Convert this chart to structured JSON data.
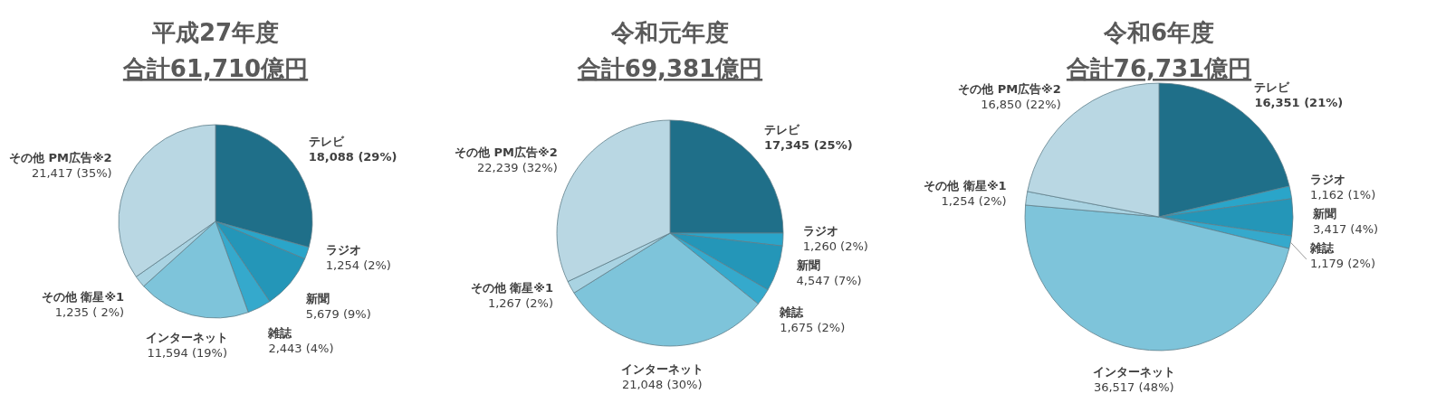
{
  "chart_data": [
    {
      "type": "pie",
      "title": "平成27年度",
      "subtitle": "合計61,710億円",
      "categories": [
        "テレビ",
        "ラジオ",
        "新聞",
        "雑誌",
        "インターネット",
        "その他 衛星※1",
        "その他 PM広告※2"
      ],
      "values": [
        18088,
        1254,
        5679,
        2443,
        11594,
        1235,
        21417
      ],
      "value_labels": [
        "18,088 (29%)",
        "1,254 (2%)",
        "5,679 (9%)",
        "2,443 (4%)",
        "11,594 (19%)",
        "1,235 ( 2%)",
        "21,417 (35%)"
      ],
      "colors": [
        "#1f6f89",
        "#2aa5c9",
        "#2496b8",
        "#35a9cc",
        "#7ec4da",
        "#a9d3e2",
        "#b9d7e3"
      ]
    },
    {
      "type": "pie",
      "title": "令和元年度",
      "subtitle": "合計69,381億円",
      "categories": [
        "テレビ",
        "ラジオ",
        "新聞",
        "雑誌",
        "インターネット",
        "その他 衛星※1",
        "その他 PM広告※2"
      ],
      "values": [
        17345,
        1260,
        4547,
        1675,
        21048,
        1267,
        22239
      ],
      "value_labels": [
        "17,345 (25%)",
        "1,260 (2%)",
        "4,547 (7%)",
        "1,675 (2%)",
        "21,048 (30%)",
        "1,267 (2%)",
        "22,239 (32%)"
      ],
      "colors": [
        "#1f6f89",
        "#2aa5c9",
        "#2496b8",
        "#35a9cc",
        "#7ec4da",
        "#a9d3e2",
        "#b9d7e3"
      ]
    },
    {
      "type": "pie",
      "title": "令和6年度",
      "subtitle": "合計76,731億円",
      "categories": [
        "テレビ",
        "ラジオ",
        "新聞",
        "雑誌",
        "インターネット",
        "その他 衛星※1",
        "その他 PM広告※2"
      ],
      "values": [
        16351,
        1162,
        3417,
        1179,
        36517,
        1254,
        16850
      ],
      "value_labels": [
        "16,351 (21%)",
        "1,162 (1%)",
        "3,417 (4%)",
        "1,179 (2%)",
        "36,517 (48%)",
        "1,254 (2%)",
        "16,850 (22%)"
      ],
      "colors": [
        "#1f6f89",
        "#2aa5c9",
        "#2496b8",
        "#35a9cc",
        "#7ec4da",
        "#a9d3e2",
        "#b9d7e3"
      ]
    }
  ]
}
